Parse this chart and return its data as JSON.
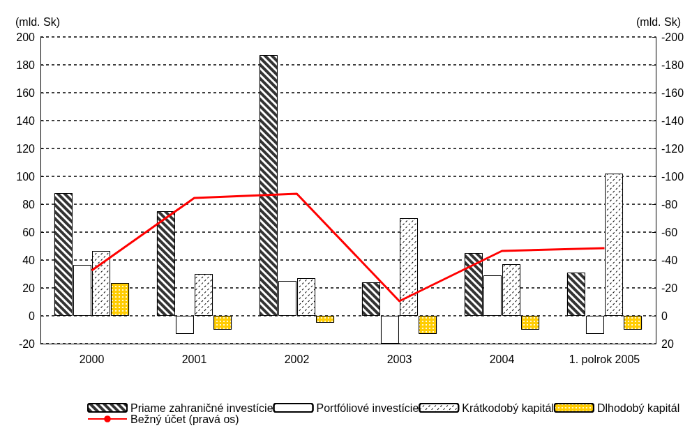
{
  "chart_data": {
    "type": "bar",
    "ylabel": "(mld. Sk)",
    "y2label": "(mld. Sk)",
    "categories": [
      "2000",
      "2001",
      "2002",
      "2003",
      "2004",
      "1. polrok 2005"
    ],
    "series": [
      {
        "name": "Priame zahraničné investície",
        "color": "#333333",
        "values": [
          88,
          75,
          187,
          24,
          45,
          31
        ]
      },
      {
        "name": "Portfóliové investície",
        "color": "#ffffff",
        "values": [
          36.5,
          -13,
          25,
          -20,
          29,
          -13
        ]
      },
      {
        "name": "Krátkodobý kapitál",
        "color": "#ffffff",
        "values": [
          46.5,
          30,
          27,
          70,
          37,
          102
        ]
      },
      {
        "name": "Dlhodobý kapitál",
        "color": "#ffcc00",
        "values": [
          23.5,
          -10,
          -5,
          -13,
          -10,
          -10
        ]
      },
      {
        "name": "Bežný účet (pravá os)",
        "type": "line",
        "axis": "y2",
        "color": "#ff0000",
        "values": [
          -32.5,
          -84.5,
          -87.5,
          -10.5,
          -46.5,
          -48.5
        ]
      }
    ],
    "ylim": [
      -20,
      200
    ],
    "yticks": [
      -20,
      0,
      20,
      40,
      60,
      80,
      100,
      120,
      140,
      160,
      180,
      200
    ],
    "y2lim": [
      20,
      -200
    ],
    "y2ticks": [
      20,
      0,
      -20,
      -40,
      -60,
      -80,
      -100,
      -120,
      -140,
      -160,
      -180,
      -200
    ],
    "grid": "y",
    "legend": "bottom",
    "marker": "none",
    "line_style": "solid"
  }
}
